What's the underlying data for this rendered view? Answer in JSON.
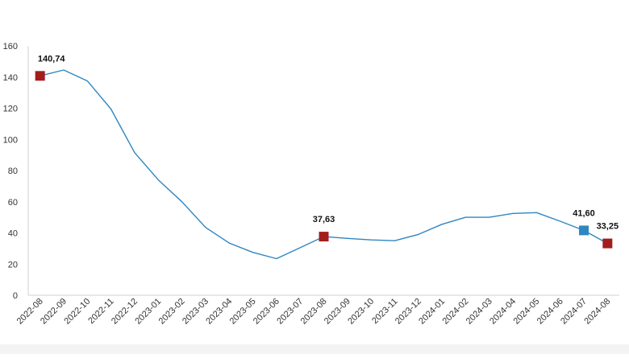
{
  "chart_data": {
    "type": "line",
    "title": "",
    "xlabel": "",
    "ylabel": "",
    "ylim": [
      0,
      160
    ],
    "yticks": [
      0,
      20,
      40,
      60,
      80,
      100,
      120,
      140,
      160
    ],
    "grid": false,
    "legend": "none",
    "categories": [
      "2022-08",
      "2022-09",
      "2022-10",
      "2022-11",
      "2022-12",
      "2023-01",
      "2023-02",
      "2023-03",
      "2023-04",
      "2023-05",
      "2023-06",
      "2023-07",
      "2023-08",
      "2023-09",
      "2023-10",
      "2023-11",
      "2023-12",
      "2024-01",
      "2024-02",
      "2024-03",
      "2024-04",
      "2024-05",
      "2024-06",
      "2024-07",
      "2024-08"
    ],
    "series": [
      {
        "color": "#2e86c1",
        "values": [
          140.74,
          144.5,
          137.5,
          119.5,
          91.5,
          74.0,
          60.0,
          43.5,
          33.5,
          27.5,
          23.5,
          30.5,
          37.63,
          36.5,
          35.5,
          35.0,
          39.0,
          45.5,
          50.0,
          50.0,
          52.5,
          53.0,
          47.5,
          41.6,
          33.25
        ]
      }
    ],
    "highlighted_points": [
      {
        "index": 0,
        "label": "140,74",
        "color": "#a31d1d"
      },
      {
        "index": 12,
        "label": "37,63",
        "color": "#a31d1d"
      },
      {
        "index": 23,
        "label": "41,60",
        "color": "#2e86c1"
      },
      {
        "index": 24,
        "label": "33,25",
        "color": "#a31d1d"
      }
    ]
  }
}
